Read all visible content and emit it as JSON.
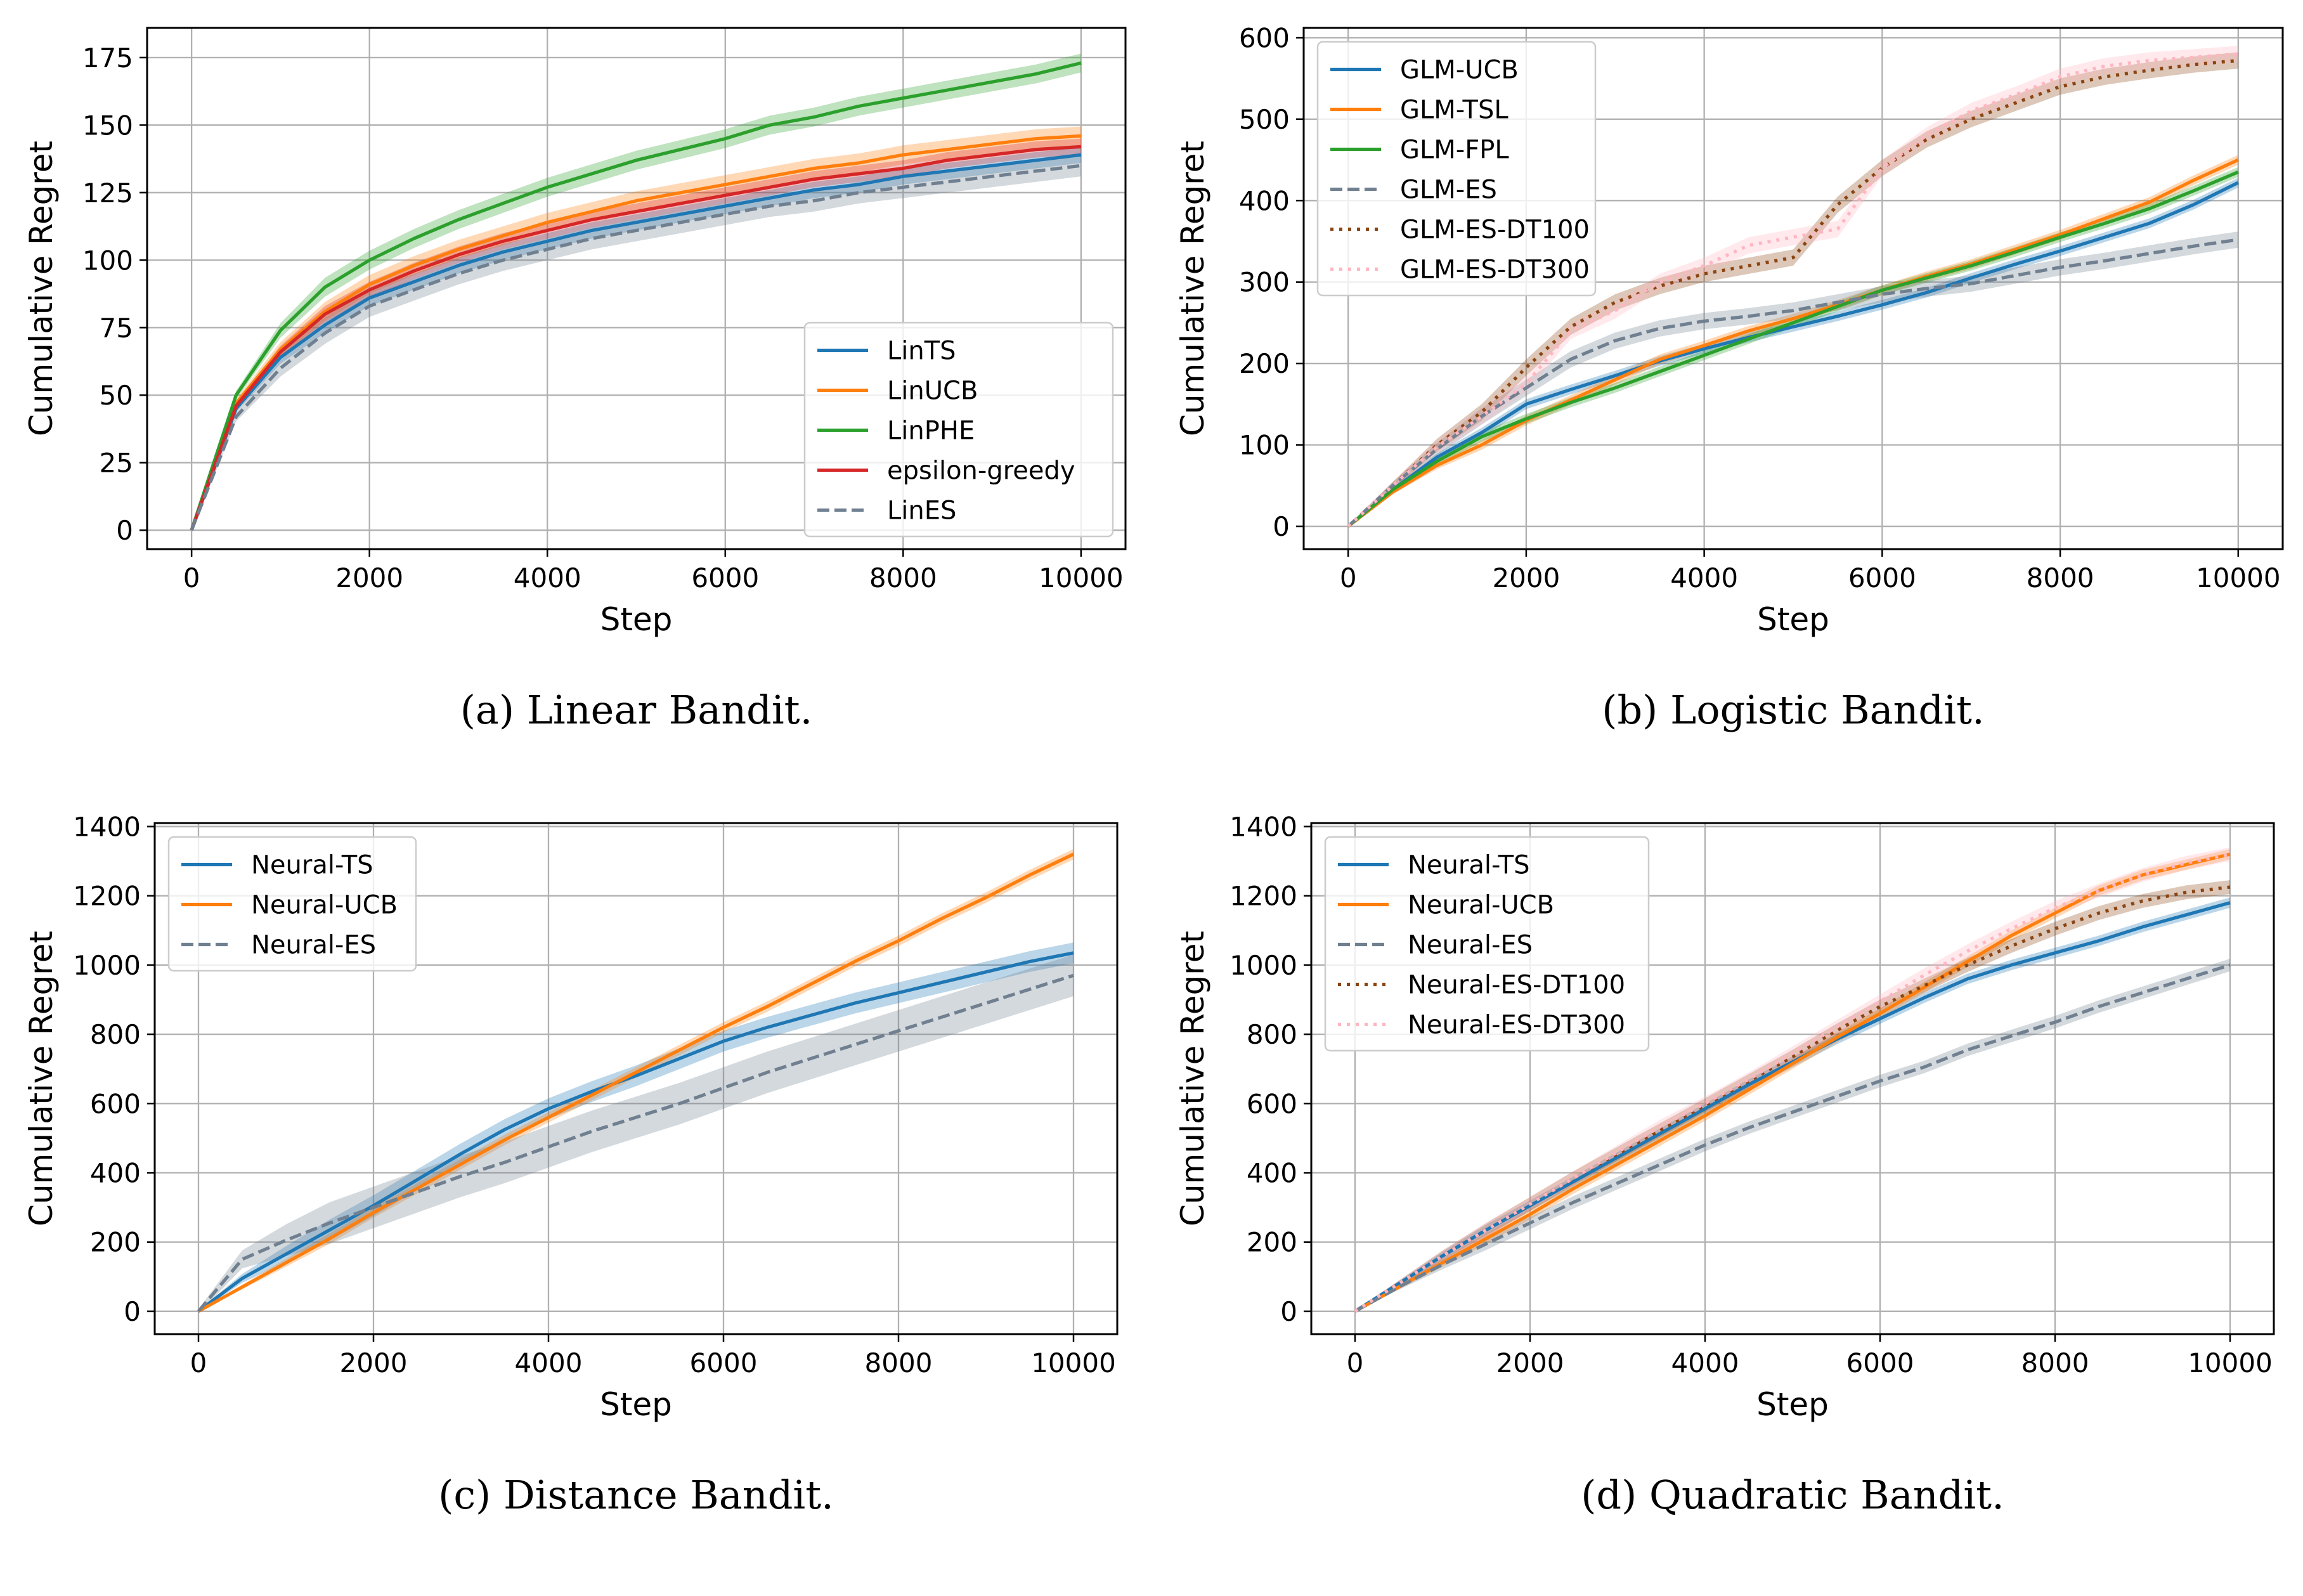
{
  "chart_data": [
    {
      "id": "a",
      "type": "line",
      "caption": "(a) Linear Bandit.",
      "xlabel": "Step",
      "ylabel": "Cumulative Regret",
      "xlim": [
        -500,
        10500
      ],
      "ylim": [
        -7,
        186
      ],
      "xticks": [
        0,
        2000,
        4000,
        6000,
        8000,
        10000
      ],
      "yticks": [
        0,
        25,
        50,
        75,
        100,
        125,
        150,
        175
      ],
      "grid": true,
      "legend_position": "bottom-right",
      "x": [
        0,
        500,
        1000,
        1500,
        2000,
        2500,
        3000,
        3500,
        4000,
        4500,
        5000,
        5500,
        6000,
        6500,
        7000,
        7500,
        8000,
        8500,
        9000,
        9500,
        10000
      ],
      "series": [
        {
          "name": "LinTS",
          "color": "#1f77b4",
          "style": "solid",
          "band": 3,
          "values": [
            0,
            45,
            64,
            76,
            86,
            92,
            98,
            103,
            107,
            111,
            114,
            117,
            120,
            123,
            126,
            128,
            131,
            133,
            135,
            137,
            139
          ]
        },
        {
          "name": "LinUCB",
          "color": "#ff7f0e",
          "style": "solid",
          "band": 3.5,
          "values": [
            0,
            47,
            67,
            81,
            91,
            98,
            104,
            109,
            114,
            118,
            122,
            125,
            128,
            131,
            134,
            136,
            139,
            141,
            143,
            145,
            146
          ]
        },
        {
          "name": "LinPHE",
          "color": "#2ca02c",
          "style": "solid",
          "band": 3.5,
          "values": [
            0,
            50,
            74,
            90,
            100,
            108,
            115,
            121,
            127,
            132,
            137,
            141,
            145,
            150,
            153,
            157,
            160,
            163,
            166,
            169,
            173
          ]
        },
        {
          "name": "epsilon-greedy",
          "color": "#d62728",
          "style": "solid",
          "band": 3,
          "values": [
            0,
            46,
            66,
            80,
            89,
            96,
            102,
            107,
            111,
            115,
            118,
            121,
            124,
            127,
            130,
            132,
            134,
            137,
            139,
            141,
            142
          ]
        },
        {
          "name": "LinES",
          "color": "#708090",
          "style": "dashed",
          "band": 4,
          "values": [
            0,
            42,
            60,
            73,
            83,
            89,
            95,
            100,
            104,
            108,
            111,
            114,
            117,
            120,
            122,
            125,
            127,
            129,
            131,
            133,
            135
          ]
        }
      ]
    },
    {
      "id": "b",
      "type": "line",
      "caption": "(b) Logistic Bandit.",
      "xlabel": "Step",
      "ylabel": "Cumulative Regret",
      "xlim": [
        -500,
        10500
      ],
      "ylim": [
        -28,
        612
      ],
      "xticks": [
        0,
        2000,
        4000,
        6000,
        8000,
        10000
      ],
      "yticks": [
        0,
        100,
        200,
        300,
        400,
        500,
        600
      ],
      "grid": true,
      "legend_position": "top-left",
      "x": [
        0,
        500,
        1000,
        1500,
        2000,
        2500,
        3000,
        3500,
        4000,
        4500,
        5000,
        5500,
        6000,
        6500,
        7000,
        7500,
        8000,
        8500,
        9000,
        9500,
        10000
      ],
      "series": [
        {
          "name": "GLM-UCB",
          "color": "#1f77b4",
          "style": "solid",
          "band": 6,
          "values": [
            0,
            45,
            85,
            115,
            150,
            168,
            185,
            203,
            218,
            232,
            245,
            258,
            272,
            287,
            305,
            322,
            338,
            355,
            372,
            395,
            422
          ]
        },
        {
          "name": "GLM-TSL",
          "color": "#ff7f0e",
          "style": "solid",
          "band": 6,
          "values": [
            0,
            42,
            75,
            100,
            130,
            155,
            180,
            205,
            222,
            240,
            255,
            272,
            290,
            307,
            322,
            340,
            358,
            378,
            398,
            425,
            450
          ]
        },
        {
          "name": "GLM-FPL",
          "color": "#2ca02c",
          "style": "solid",
          "band": 6,
          "values": [
            0,
            45,
            80,
            110,
            132,
            152,
            170,
            190,
            210,
            230,
            250,
            270,
            290,
            305,
            320,
            337,
            355,
            372,
            390,
            412,
            435
          ]
        },
        {
          "name": "GLM-ES",
          "color": "#708090",
          "style": "dashed",
          "band": 10,
          "values": [
            0,
            50,
            95,
            135,
            170,
            205,
            228,
            243,
            252,
            258,
            265,
            275,
            285,
            292,
            298,
            308,
            318,
            326,
            335,
            344,
            352
          ]
        },
        {
          "name": "GLM-ES-DT100",
          "color": "#8b4513",
          "style": "dotted",
          "band": 10,
          "values": [
            0,
            50,
            100,
            140,
            195,
            245,
            275,
            295,
            310,
            320,
            330,
            395,
            440,
            475,
            500,
            520,
            540,
            552,
            560,
            567,
            572
          ]
        },
        {
          "name": "GLM-ES-DT300",
          "color": "#ffb6c1",
          "style": "dotted",
          "band": 10,
          "values": [
            0,
            50,
            98,
            135,
            175,
            240,
            265,
            300,
            320,
            345,
            355,
            365,
            440,
            480,
            510,
            530,
            552,
            565,
            572,
            576,
            580
          ]
        }
      ]
    },
    {
      "id": "c",
      "type": "line",
      "caption": "(c) Distance Bandit.",
      "xlabel": "Step",
      "ylabel": "Cumulative Regret",
      "xlim": [
        -500,
        10500
      ],
      "ylim": [
        -66,
        1410
      ],
      "xticks": [
        0,
        2000,
        4000,
        6000,
        8000,
        10000
      ],
      "yticks": [
        0,
        200,
        400,
        600,
        800,
        1000,
        1200,
        1400
      ],
      "grid": true,
      "legend_position": "top-left",
      "x": [
        0,
        500,
        1000,
        1500,
        2000,
        2500,
        3000,
        3500,
        4000,
        4500,
        5000,
        5500,
        6000,
        6500,
        7000,
        7500,
        8000,
        8500,
        9000,
        9500,
        10000
      ],
      "series": [
        {
          "name": "Neural-TS",
          "color": "#1f77b4",
          "style": "solid",
          "band": 30,
          "values": [
            0,
            95,
            165,
            235,
            305,
            380,
            455,
            525,
            585,
            635,
            680,
            730,
            780,
            820,
            855,
            890,
            920,
            950,
            980,
            1010,
            1035
          ]
        },
        {
          "name": "Neural-UCB",
          "color": "#ff7f0e",
          "style": "solid",
          "band": 15,
          "values": [
            0,
            70,
            140,
            210,
            285,
            355,
            425,
            495,
            560,
            625,
            690,
            755,
            820,
            880,
            945,
            1010,
            1070,
            1135,
            1195,
            1260,
            1320
          ]
        },
        {
          "name": "Neural-ES",
          "color": "#708090",
          "style": "dashed",
          "band": 60,
          "values": [
            0,
            150,
            205,
            255,
            300,
            345,
            390,
            430,
            475,
            520,
            560,
            600,
            645,
            690,
            730,
            770,
            810,
            850,
            890,
            930,
            970
          ]
        }
      ]
    },
    {
      "id": "d",
      "type": "line",
      "caption": "(d) Quadratic Bandit.",
      "xlabel": "Step",
      "ylabel": "Cumulative Regret",
      "xlim": [
        -500,
        10500
      ],
      "ylim": [
        -66,
        1410
      ],
      "xticks": [
        0,
        2000,
        4000,
        6000,
        8000,
        10000
      ],
      "yticks": [
        0,
        200,
        400,
        600,
        800,
        1000,
        1200,
        1400
      ],
      "grid": true,
      "legend_position": "top-left",
      "x": [
        0,
        500,
        1000,
        1500,
        2000,
        2500,
        3000,
        3500,
        4000,
        4500,
        5000,
        5500,
        6000,
        6500,
        7000,
        7500,
        8000,
        8500,
        9000,
        9500,
        10000
      ],
      "series": [
        {
          "name": "Neural-TS",
          "color": "#1f77b4",
          "style": "solid",
          "band": 15,
          "values": [
            0,
            80,
            160,
            235,
            305,
            375,
            445,
            515,
            585,
            655,
            720,
            785,
            845,
            905,
            960,
            1000,
            1035,
            1070,
            1110,
            1145,
            1180
          ]
        },
        {
          "name": "Neural-UCB",
          "color": "#ff7f0e",
          "style": "solid",
          "band": 15,
          "values": [
            0,
            70,
            140,
            210,
            280,
            355,
            425,
            495,
            565,
            640,
            715,
            790,
            860,
            935,
            1010,
            1085,
            1150,
            1215,
            1260,
            1290,
            1320
          ]
        },
        {
          "name": "Neural-ES",
          "color": "#708090",
          "style": "dashed",
          "band": 18,
          "values": [
            0,
            70,
            135,
            195,
            255,
            315,
            370,
            425,
            480,
            530,
            575,
            620,
            665,
            705,
            755,
            795,
            835,
            880,
            920,
            960,
            1000
          ]
        },
        {
          "name": "Neural-ES-DT100",
          "color": "#8b4513",
          "style": "dotted",
          "band": 20,
          "values": [
            0,
            80,
            160,
            235,
            310,
            385,
            455,
            525,
            595,
            665,
            735,
            810,
            880,
            940,
            1000,
            1055,
            1105,
            1150,
            1185,
            1210,
            1225
          ]
        },
        {
          "name": "Neural-ES-DT300",
          "color": "#ffb6c1",
          "style": "dotted",
          "band": 20,
          "values": [
            0,
            80,
            160,
            235,
            310,
            385,
            460,
            535,
            600,
            670,
            745,
            820,
            895,
            970,
            1040,
            1105,
            1165,
            1215,
            1260,
            1295,
            1320
          ]
        }
      ]
    }
  ]
}
